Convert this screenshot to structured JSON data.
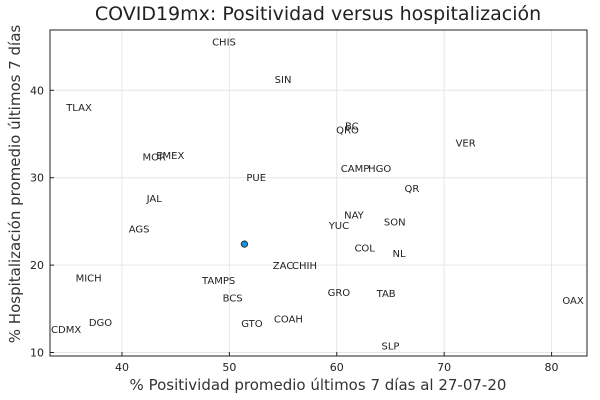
{
  "chart_data": {
    "type": "scatter",
    "title": "COVID19mx: Positividad versus hospitalización",
    "xlabel": "% Positividad promedio últimos 7 días al 27-07-20",
    "ylabel": "% Hospitalización promedio últimos 7 días",
    "xlim": [
      33.3,
      83.3
    ],
    "ylim": [
      9.6,
      46.9
    ],
    "xticks": [
      40,
      50,
      60,
      70,
      80
    ],
    "yticks": [
      10,
      20,
      30,
      40
    ],
    "grid": true,
    "legend": "none",
    "point_color": "#1f8fd6",
    "highlight": {
      "x": 51.4,
      "y": 22.4
    },
    "labels": [
      {
        "name": "CHIS",
        "x": 49.5,
        "y": 45.6
      },
      {
        "name": "SIN",
        "x": 55.0,
        "y": 41.3
      },
      {
        "name": "TLAX",
        "x": 36.0,
        "y": 38.1
      },
      {
        "name": "BC",
        "x": 61.4,
        "y": 36.0
      },
      {
        "name": "QRO",
        "x": 61.0,
        "y": 35.5
      },
      {
        "name": "VER",
        "x": 72.0,
        "y": 34.0
      },
      {
        "name": "MOR",
        "x": 43.0,
        "y": 32.4
      },
      {
        "name": "EMEX",
        "x": 44.5,
        "y": 32.6
      },
      {
        "name": "CAMP",
        "x": 61.7,
        "y": 31.1
      },
      {
        "name": "HGO",
        "x": 64.0,
        "y": 31.1
      },
      {
        "name": "PUE",
        "x": 52.5,
        "y": 30.1
      },
      {
        "name": "QR",
        "x": 67.0,
        "y": 28.8
      },
      {
        "name": "JAL",
        "x": 43.0,
        "y": 27.7
      },
      {
        "name": "NAY",
        "x": 61.6,
        "y": 25.8
      },
      {
        "name": "SON",
        "x": 65.4,
        "y": 25.0
      },
      {
        "name": "YUC",
        "x": 60.2,
        "y": 24.6
      },
      {
        "name": "AGS",
        "x": 41.6,
        "y": 24.2
      },
      {
        "name": "COL",
        "x": 62.6,
        "y": 22.0
      },
      {
        "name": "NL",
        "x": 65.8,
        "y": 21.4
      },
      {
        "name": "ZAC",
        "x": 55.0,
        "y": 20.0
      },
      {
        "name": "CHIH",
        "x": 57.0,
        "y": 20.0
      },
      {
        "name": "MICH",
        "x": 36.9,
        "y": 18.6
      },
      {
        "name": "TAMPS",
        "x": 49.0,
        "y": 18.3
      },
      {
        "name": "GRO",
        "x": 60.2,
        "y": 16.9
      },
      {
        "name": "TAB",
        "x": 64.6,
        "y": 16.8
      },
      {
        "name": "BCS",
        "x": 50.3,
        "y": 16.3
      },
      {
        "name": "OAX",
        "x": 82.0,
        "y": 16.0
      },
      {
        "name": "COAH",
        "x": 55.5,
        "y": 13.9
      },
      {
        "name": "DGO",
        "x": 38.0,
        "y": 13.5
      },
      {
        "name": "GTO",
        "x": 52.1,
        "y": 13.4
      },
      {
        "name": "CDMX",
        "x": 34.8,
        "y": 12.7
      },
      {
        "name": "SLP",
        "x": 65.0,
        "y": 10.8
      }
    ]
  }
}
